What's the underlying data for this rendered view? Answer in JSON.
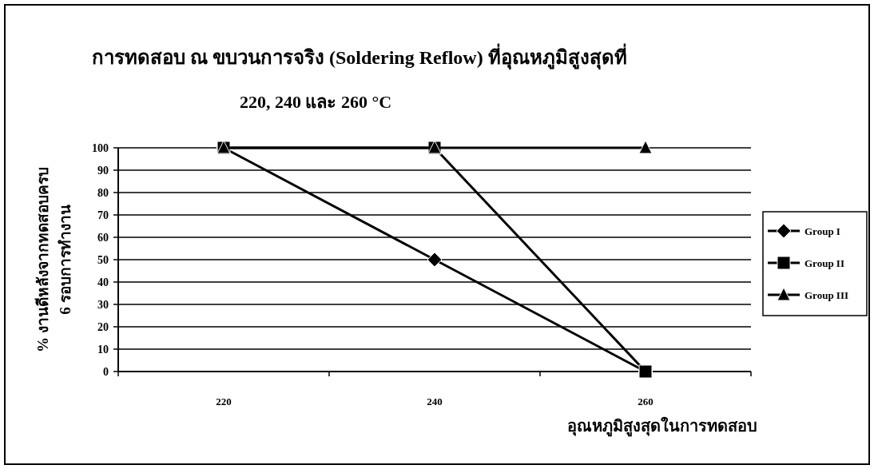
{
  "chart_data": {
    "type": "line",
    "title": "การทดสอบ ณ ขบวนการจริง (Soldering Reflow) ที่อุณหภูมิสูงสุดที่",
    "subtitle": "220, 240 และ 260 °C",
    "xlabel": "อุณหภูมิสูงสุดในการทดสอบ",
    "ylabel": "% งานดีหลังจากทดสอบครบ\n6 รอบการทำงาน",
    "categories": [
      "220",
      "240",
      "260"
    ],
    "series": [
      {
        "name": "Group I",
        "color": "#000000",
        "marker": "diamond",
        "values": [
          100,
          50,
          0
        ]
      },
      {
        "name": "Group II",
        "color": "#000000",
        "marker": "square",
        "values": [
          100,
          100,
          0
        ]
      },
      {
        "name": "Group III",
        "color": "#000000",
        "marker": "triangle",
        "values": [
          100,
          100,
          100
        ]
      }
    ],
    "ylim": [
      0,
      100
    ],
    "yticks": [
      0,
      10,
      20,
      30,
      40,
      50,
      60,
      70,
      80,
      90,
      100
    ],
    "grid": "y",
    "legend": "right",
    "line_style": "solid"
  }
}
